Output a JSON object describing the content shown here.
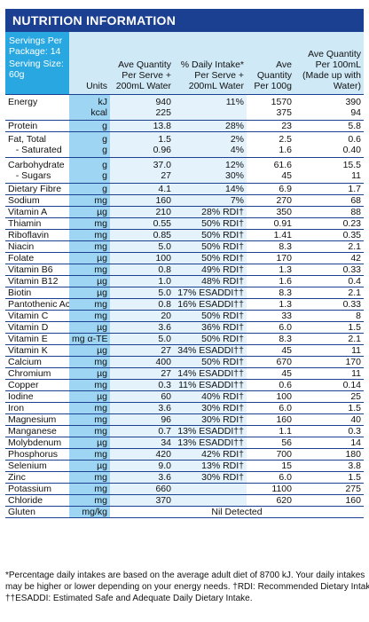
{
  "title": "NUTRITION INFORMATION",
  "header": {
    "servings_per_package": "Servings Per Package: 14",
    "serving_size": "Serving Size: 60g",
    "units": "Units",
    "col_ave_serve": "Ave Quantity Per Serve + 200mL Water",
    "col_daily_intake": "% Daily Intake* Per Serve + 200mL Water",
    "col_per_100g": "Ave Quantity Per 100g",
    "col_per_100ml": "Ave Quantity Per 100mL (Made up with Water)"
  },
  "rows": [
    {
      "name": "Energy",
      "unit": "kJ\nkcal",
      "serve": "940\n225",
      "di": "11%",
      "g100": "1570\n375",
      "ml100": "390\n94"
    },
    {
      "name": "Protein",
      "unit": "g",
      "serve": "13.8",
      "di": "28%",
      "g100": "23",
      "ml100": "5.8"
    },
    {
      "name": "Fat, Total\n   - Saturated",
      "unit": "g\ng",
      "serve": "1.5\n0.96",
      "di": "2%\n4%",
      "g100": "2.5\n1.6",
      "ml100": "0.6\n0.40"
    },
    {
      "name": "Carbohydrate\n   - Sugars",
      "unit": "g\ng",
      "serve": "37.0\n27",
      "di": "12%\n30%",
      "g100": "61.6\n45",
      "ml100": "15.5\n11"
    },
    {
      "name": "Dietary Fibre",
      "unit": "g",
      "serve": "4.1",
      "di": "14%",
      "g100": "6.9",
      "ml100": "1.7"
    },
    {
      "name": "Sodium",
      "unit": "mg",
      "serve": "160",
      "di": "7%",
      "g100": "270",
      "ml100": "68"
    },
    {
      "name": "Vitamin A",
      "unit": "µg",
      "serve": "210",
      "di": "28% RDI†",
      "g100": "350",
      "ml100": "88"
    },
    {
      "name": "Thiamin",
      "unit": "mg",
      "serve": "0.55",
      "di": "50% RDI†",
      "g100": "0.91",
      "ml100": "0.23"
    },
    {
      "name": "Riboflavin",
      "unit": "mg",
      "serve": "0.85",
      "di": "50% RDI†",
      "g100": "1.41",
      "ml100": "0.35"
    },
    {
      "name": "Niacin",
      "unit": "mg",
      "serve": "5.0",
      "di": "50% RDI†",
      "g100": "8.3",
      "ml100": "2.1"
    },
    {
      "name": "Folate",
      "unit": "µg",
      "serve": "100",
      "di": "50% RDI†",
      "g100": "170",
      "ml100": "42"
    },
    {
      "name": "Vitamin B6",
      "unit": "mg",
      "serve": "0.8",
      "di": "49% RDI†",
      "g100": "1.3",
      "ml100": "0.33"
    },
    {
      "name": "Vitamin B12",
      "unit": "µg",
      "serve": "1.0",
      "di": "48% RDI†",
      "g100": "1.6",
      "ml100": "0.4"
    },
    {
      "name": "Biotin",
      "unit": "µg",
      "serve": "5.0",
      "di": "17% ESADDI††",
      "g100": "8.3",
      "ml100": "2.1"
    },
    {
      "name": "Pantothenic Acid",
      "unit": "mg",
      "serve": "0.8",
      "di": "16% ESADDI††",
      "g100": "1.3",
      "ml100": "0.33"
    },
    {
      "name": "Vitamin C",
      "unit": "mg",
      "serve": "20",
      "di": "50% RDI†",
      "g100": "33",
      "ml100": "8"
    },
    {
      "name": "Vitamin D",
      "unit": "µg",
      "serve": "3.6",
      "di": "36% RDI†",
      "g100": "6.0",
      "ml100": "1.5"
    },
    {
      "name": "Vitamin E",
      "unit": "mg α-TE",
      "serve": "5.0",
      "di": "50% RDI†",
      "g100": "8.3",
      "ml100": "2.1"
    },
    {
      "name": "Vitamin K",
      "unit": "µg",
      "serve": "27",
      "di": "34% ESADDI††",
      "g100": "45",
      "ml100": "11"
    },
    {
      "name": "Calcium",
      "unit": "mg",
      "serve": "400",
      "di": "50% RDI†",
      "g100": "670",
      "ml100": "170"
    },
    {
      "name": "Chromium",
      "unit": "µg",
      "serve": "27",
      "di": "14% ESADDI††",
      "g100": "45",
      "ml100": "11"
    },
    {
      "name": "Copper",
      "unit": "mg",
      "serve": "0.3",
      "di": "11% ESADDI††",
      "g100": "0.6",
      "ml100": "0.14"
    },
    {
      "name": "Iodine",
      "unit": "µg",
      "serve": "60",
      "di": "40% RDI†",
      "g100": "100",
      "ml100": "25"
    },
    {
      "name": "Iron",
      "unit": "mg",
      "serve": "3.6",
      "di": "30% RDI†",
      "g100": "6.0",
      "ml100": "1.5"
    },
    {
      "name": "Magnesium",
      "unit": "mg",
      "serve": "96",
      "di": "30% RDI†",
      "g100": "160",
      "ml100": "40"
    },
    {
      "name": "Manganese",
      "unit": "mg",
      "serve": "0.7",
      "di": "13% ESADDI††",
      "g100": "1.1",
      "ml100": "0.3"
    },
    {
      "name": "Molybdenum",
      "unit": "µg",
      "serve": "34",
      "di": "13% ESADDI††",
      "g100": "56",
      "ml100": "14"
    },
    {
      "name": "Phosphorus",
      "unit": "mg",
      "serve": "420",
      "di": "42% RDI†",
      "g100": "700",
      "ml100": "180"
    },
    {
      "name": "Selenium",
      "unit": "µg",
      "serve": "9.0",
      "di": "13% RDI†",
      "g100": "15",
      "ml100": "3.8"
    },
    {
      "name": "Zinc",
      "unit": "mg",
      "serve": "3.6",
      "di": "30% RDI†",
      "g100": "6.0",
      "ml100": "1.5"
    },
    {
      "name": "Potassium",
      "unit": "mg",
      "serve": "660",
      "di": "",
      "g100": "1100",
      "ml100": "275"
    },
    {
      "name": "Chloride",
      "unit": "mg",
      "serve": "370",
      "di": "",
      "g100": "620",
      "ml100": "160"
    }
  ],
  "gluten": {
    "name": "Gluten",
    "unit": "mg/kg",
    "value": "Nil Detected"
  },
  "footnote": {
    "line1": "*Percentage daily intakes are based on the average adult diet of 8700 kJ. Your daily intakes",
    "line2": "may be higher or lower depending on your energy needs. †RDI: Recommended Dietary Intake.",
    "line3": "††ESADDI: Estimated Safe and Adequate Daily Dietary Intake."
  }
}
